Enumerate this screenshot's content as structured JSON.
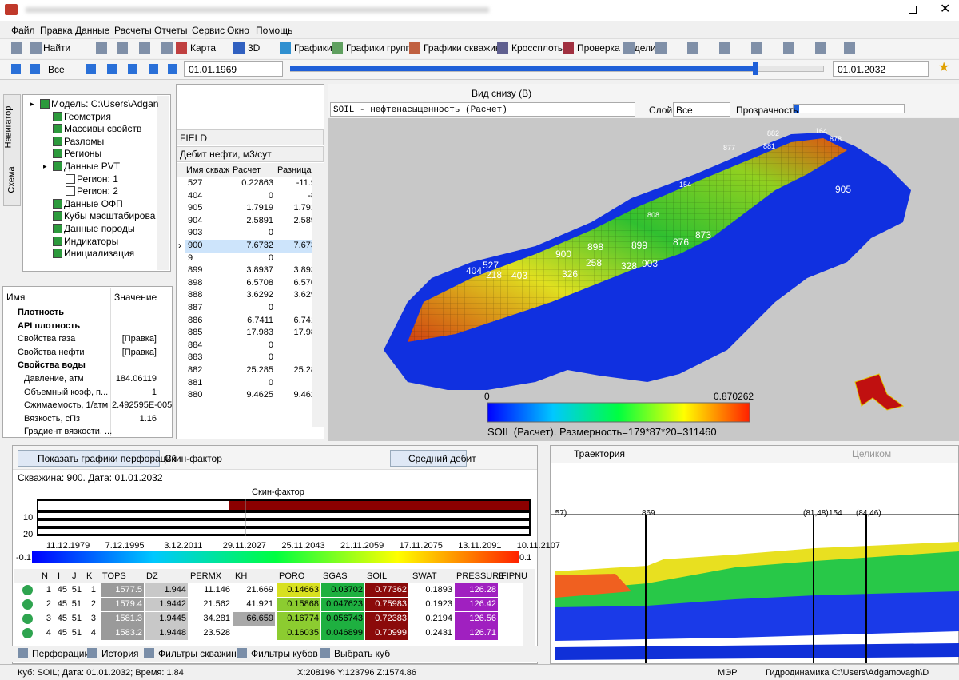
{
  "menu": [
    "Файл",
    "Правка",
    "Данные",
    "Расчеты",
    "Отчеты",
    "Сервис",
    "Окно",
    "Помощь"
  ],
  "toolbar": {
    "find": "Найти",
    "buttons": [
      "Карта",
      "3D",
      "Графики",
      "Графики групп",
      "Графики скважин",
      "Кроссплоты",
      "Проверка модели"
    ]
  },
  "timeline": {
    "filter": "Все",
    "start": "01.01.1969",
    "end": "01.01.2032"
  },
  "navigator": {
    "tabs": [
      "Навигатор",
      "Схема"
    ],
    "tree": {
      "label": "Модель: C:\\Users\\Adgan",
      "children": [
        {
          "label": "Геометрия"
        },
        {
          "label": "Массивы свойств"
        },
        {
          "label": "Разломы"
        },
        {
          "label": "Регионы"
        },
        {
          "label": "Данные PVT",
          "children": [
            {
              "label": "Регион: 1"
            },
            {
              "label": "Регион: 2"
            }
          ]
        },
        {
          "label": "Данные ОФП"
        },
        {
          "label": "Кубы масштабирова"
        },
        {
          "label": "Данные породы"
        },
        {
          "label": "Индикаторы"
        },
        {
          "label": "Инициализация"
        }
      ]
    }
  },
  "properties": {
    "columns": [
      "Имя",
      "Значение"
    ],
    "rows": [
      {
        "name": "Плотность",
        "expanded": false
      },
      {
        "name": "API плотность",
        "expanded": false
      },
      {
        "name": "Свойства газа",
        "value": "[Правка]"
      },
      {
        "name": "Свойства нефти",
        "value": "[Правка]"
      },
      {
        "name": "Свойства воды",
        "expanded": true,
        "children": [
          {
            "name": "Давление, атм",
            "value": "184.06119"
          },
          {
            "name": "Объемный коэф, п...",
            "value": "1"
          },
          {
            "name": "Сжимаемость, 1/атм",
            "value": "2.492595E-005"
          },
          {
            "name": "Вязкость, сПз",
            "value": "1.16"
          },
          {
            "name": "Градиент вязкости, ..."
          }
        ]
      }
    ]
  },
  "well_table": {
    "group": "FIELD",
    "parameter": "Дебит нефти, м3/сут",
    "columns": [
      "Имя скваж",
      "Расчет",
      "Разница"
    ],
    "selected": "900",
    "rows": [
      [
        "527",
        "0.22863",
        "-11.9"
      ],
      [
        "404",
        "0",
        "-8"
      ],
      [
        "905",
        "1.7919",
        "1.791"
      ],
      [
        "904",
        "2.5891",
        "2.589"
      ],
      [
        "903",
        "0"
      ],
      [
        "900",
        "7.6732",
        "7.673"
      ],
      [
        "9",
        "0"
      ],
      [
        "899",
        "3.8937",
        "3.893"
      ],
      [
        "898",
        "6.5708",
        "6.570"
      ],
      [
        "888",
        "3.6292",
        "3.629"
      ],
      [
        "887",
        "0"
      ],
      [
        "886",
        "6.7411",
        "6.741"
      ],
      [
        "885",
        "17.983",
        "17.98"
      ],
      [
        "884",
        "0"
      ],
      [
        "883",
        "0"
      ],
      [
        "882",
        "25.285",
        "25.28"
      ],
      [
        "881",
        "0"
      ],
      [
        "880",
        "9.4625",
        "9.462"
      ]
    ]
  },
  "view3d": {
    "view": "Вид снизу (В)",
    "property": "SOIL    - нефтенасыщенность (Расчет)",
    "layer_label": "Слой",
    "layer": "Все",
    "transparency": "Прозрачность",
    "colorbar": {
      "min": "0",
      "max": "0.870262",
      "caption": "SOIL  (Расчет).  Размерность=179*87*20=311460"
    },
    "well_labels": [
      "404",
      "527",
      "218",
      "403",
      "326",
      "900",
      "258",
      "328",
      "903",
      "898",
      "899",
      "876",
      "873",
      "905",
      "808",
      "154",
      "882",
      "881",
      "164",
      "878",
      "877"
    ]
  },
  "perforation_panel": {
    "show_button": "Показать графики перфораций",
    "mode": "Скин-фактор",
    "average": "Средний дебит",
    "info": "Скважина: 900. Дата: 01.01.2032",
    "chart_title": "Скин-фактор",
    "yticks": [
      "10",
      "20"
    ],
    "dates": [
      "11.12.1979",
      "7.12.1995",
      "3.12.2011",
      "29.11.2027",
      "25.11.2043",
      "21.11.2059",
      "17.11.2075",
      "13.11.2091",
      "10.11.2107"
    ],
    "scale_min": "-0.1",
    "scale_max": "0.1",
    "table": {
      "columns": [
        "N",
        "I",
        "J",
        "K",
        "TOPS",
        "DZ",
        "PERMX",
        "KH",
        "PORO",
        "SGAS",
        "SOIL",
        "SWAT",
        "PRESSURE",
        "FIPNU"
      ],
      "rows": [
        [
          "1",
          "45",
          "51",
          "1",
          "1577.5",
          "1.944",
          "11.146",
          "21.669",
          "0.14663",
          "0.03702",
          "0.77362",
          "0.1893",
          "126.28"
        ],
        [
          "2",
          "45",
          "51",
          "2",
          "1579.4",
          "1.9442",
          "21.562",
          "41.921",
          "0.15868",
          "0.047623",
          "0.75983",
          "0.1923",
          "126.42"
        ],
        [
          "3",
          "45",
          "51",
          "3",
          "1581.3",
          "1.9445",
          "34.281",
          "66.659",
          "0.16774",
          "0.056743",
          "0.72383",
          "0.2194",
          "126.56"
        ],
        [
          "4",
          "45",
          "51",
          "4",
          "1583.2",
          "1.9448",
          "23.528",
          null,
          "0.16035",
          "0.046899",
          "0.70999",
          "0.2431",
          "126.71"
        ]
      ]
    }
  },
  "bottom_tabs": [
    "Перфорации",
    "История",
    "Фильтры скважин",
    "Фильтры кубов",
    "Выбрать куб"
  ],
  "trajectory": {
    "mode": "Траектория",
    "zoom": "Целиком",
    "labels": [
      ".57)",
      "869",
      "(81,48)",
      "154",
      "(84,46)"
    ]
  },
  "status": [
    "Куб: SOIL; Дата: 01.01.2032; Время: 1.84",
    "X:208196 Y:123796 Z:1574.86",
    "МЭР",
    "Гидродинамика C:\\Users\\Adgamovagh\\D"
  ]
}
